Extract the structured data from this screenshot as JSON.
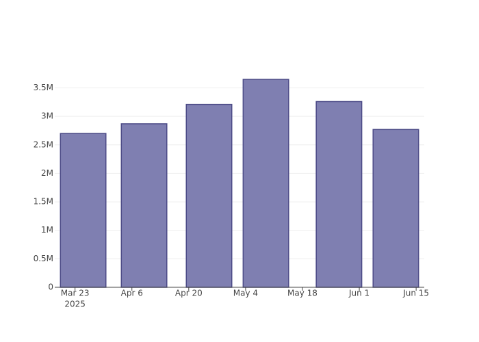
{
  "chart_data": {
    "type": "bar",
    "x": [
      "2025-03-25",
      "2025-04-09",
      "2025-04-25",
      "2025-05-09",
      "2025-05-27",
      "2025-06-10"
    ],
    "values": [
      2700000,
      2870000,
      3210000,
      3650000,
      3260000,
      2770000
    ],
    "color": "#7f7fb1",
    "edge_color": "#4b4a86",
    "xlim": [
      "2025-03-18",
      "2025-06-17"
    ],
    "xticks": [
      {
        "value": "2025-03-23",
        "label": "Mar 23",
        "sublabel": "2025"
      },
      {
        "value": "2025-04-06",
        "label": "Apr 6"
      },
      {
        "value": "2025-04-20",
        "label": "Apr 20"
      },
      {
        "value": "2025-05-04",
        "label": "May 4"
      },
      {
        "value": "2025-05-18",
        "label": "May 18"
      },
      {
        "value": "2025-06-01",
        "label": "Jun 1"
      },
      {
        "value": "2025-06-15",
        "label": "Jun 15"
      }
    ],
    "ylim": [
      0,
      3650000
    ],
    "yticks": [
      0,
      {
        "value": 500000,
        "label": "0.5M"
      },
      {
        "value": 1000000,
        "label": "1M"
      },
      {
        "value": 1500000,
        "label": "1.5M"
      },
      {
        "value": 2000000,
        "label": "2M"
      },
      {
        "value": 2500000,
        "label": "2.5M"
      },
      {
        "value": 3000000,
        "label": "3M"
      },
      {
        "value": 3500000,
        "label": "3.5M"
      }
    ],
    "grid": true
  }
}
